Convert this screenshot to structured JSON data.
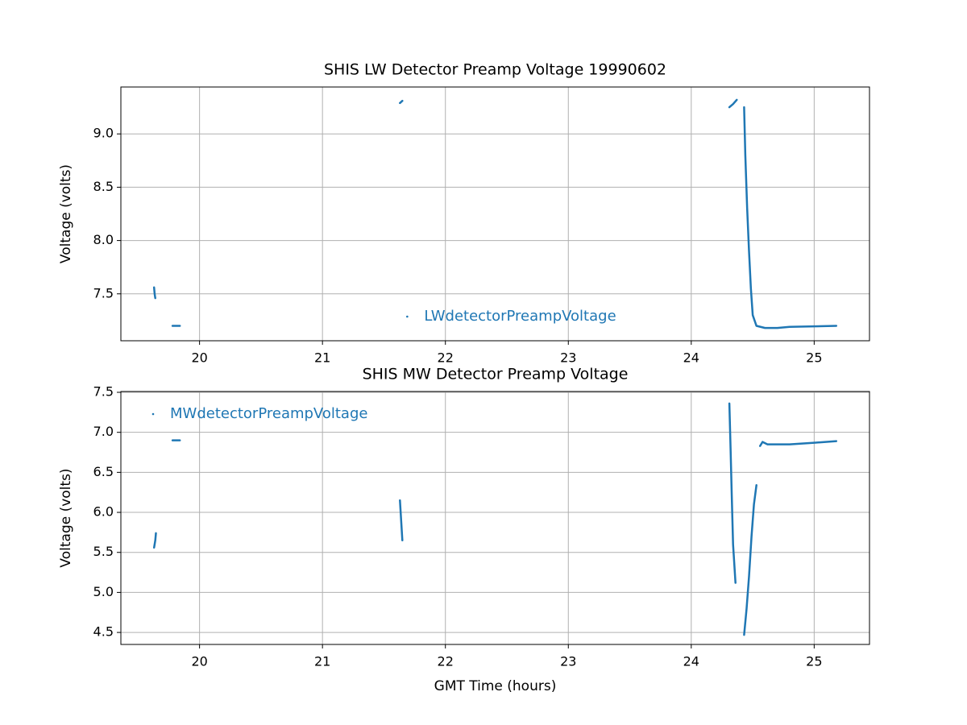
{
  "chart_data": [
    {
      "type": "line",
      "title": "SHIS LW Detector Preamp Voltage 19990602",
      "ylabel": "Voltage (volts)",
      "xlim": [
        19.36,
        25.45
      ],
      "xticks": [
        20,
        21,
        22,
        23,
        24,
        25
      ],
      "ylim": [
        7.06,
        9.44
      ],
      "yticks": [
        7.5,
        {
          "value": 8,
          "label": "8.0"
        },
        8.5,
        {
          "value": 9,
          "label": "9.0"
        }
      ],
      "grid": true,
      "legend": "lower center",
      "series": [
        {
          "name": "LWdetectorPreampVoltage",
          "color": "#1f77b4",
          "x": [
            19.63,
            19.635,
            19.64,
            null,
            19.78,
            19.84,
            null,
            21.63,
            21.65,
            null,
            24.31,
            24.34,
            24.37,
            null,
            24.43,
            24.44,
            24.455,
            24.47,
            24.485,
            24.5,
            24.53,
            24.6,
            24.7,
            24.8,
            25.0,
            25.18
          ],
          "values": [
            7.56,
            7.5,
            7.46,
            null,
            7.2,
            7.2,
            null,
            9.29,
            9.31,
            null,
            9.25,
            9.28,
            9.32,
            null,
            9.25,
            8.8,
            8.3,
            7.9,
            7.55,
            7.3,
            7.2,
            7.18,
            7.18,
            7.19,
            7.195,
            7.2
          ]
        }
      ]
    },
    {
      "type": "line",
      "title": "SHIS MW Detector Preamp Voltage",
      "ylabel": "Voltage (volts)",
      "xlabel": "GMT Time (hours)",
      "xlim": [
        19.36,
        25.45
      ],
      "xticks": [
        20,
        21,
        22,
        23,
        24,
        25
      ],
      "ylim": [
        4.35,
        7.51
      ],
      "yticks": [
        4.5,
        {
          "value": 5,
          "label": "5.0"
        },
        5.5,
        {
          "value": 6,
          "label": "6.0"
        },
        6.5,
        {
          "value": 7,
          "label": "7.0"
        },
        7.5
      ],
      "grid": true,
      "legend": "upper left",
      "series": [
        {
          "name": "MWdetectorPreampVoltage",
          "color": "#1f77b4",
          "x": [
            19.63,
            19.64,
            19.645,
            null,
            19.78,
            19.84,
            null,
            21.63,
            21.64,
            21.65,
            null,
            24.31,
            24.32,
            24.33,
            24.34,
            24.36,
            null,
            24.43,
            24.45,
            24.47,
            24.49,
            24.51,
            24.53,
            null,
            24.56,
            24.58,
            24.62,
            24.8,
            25.0,
            25.18
          ],
          "values": [
            5.56,
            5.65,
            5.74,
            null,
            6.9,
            6.9,
            null,
            6.15,
            5.9,
            5.65,
            null,
            7.36,
            6.8,
            6.2,
            5.6,
            5.12,
            null,
            4.47,
            4.8,
            5.2,
            5.7,
            6.1,
            6.34,
            null,
            6.83,
            6.88,
            6.85,
            6.85,
            6.87,
            6.89
          ]
        }
      ]
    }
  ]
}
